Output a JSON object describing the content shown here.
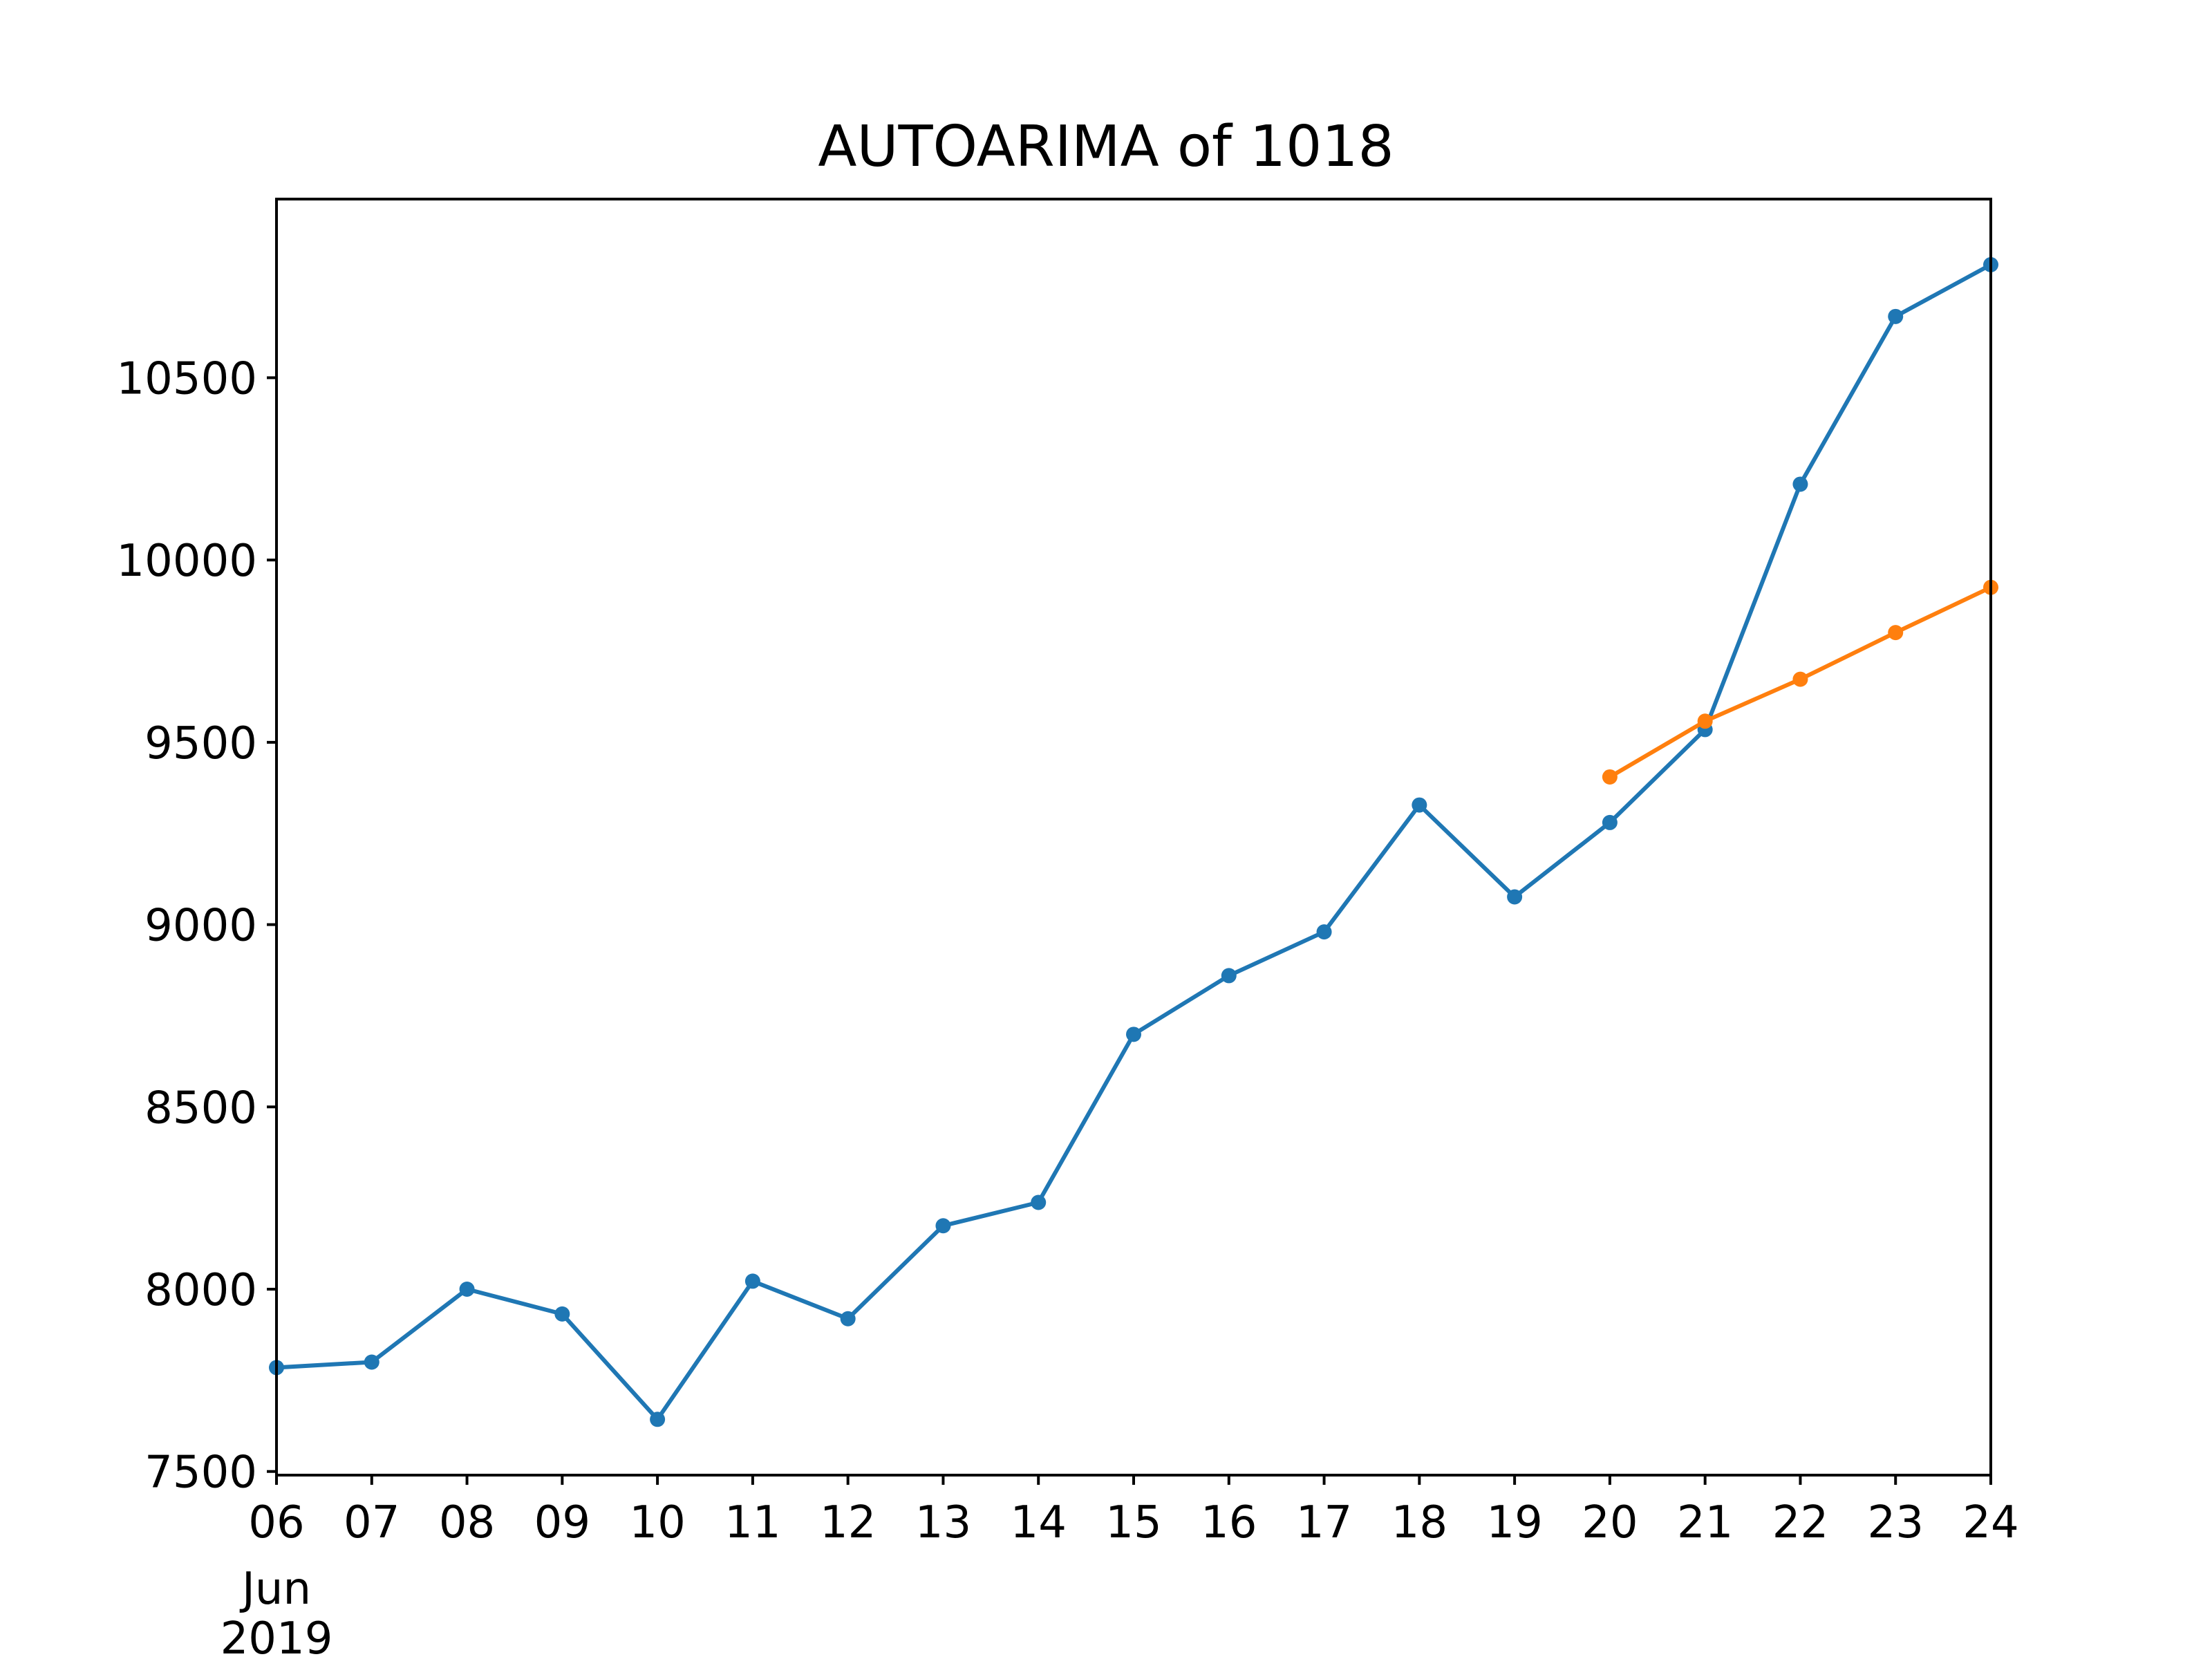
{
  "chart_data": {
    "type": "line",
    "title": "AUTOARIMA of 1018",
    "xlabel": "",
    "ylabel": "",
    "x_axis_label_lines": [
      "Jun",
      "2019"
    ],
    "x": [
      "2019-06-06",
      "2019-06-07",
      "2019-06-08",
      "2019-06-09",
      "2019-06-10",
      "2019-06-11",
      "2019-06-12",
      "2019-06-13",
      "2019-06-14",
      "2019-06-15",
      "2019-06-16",
      "2019-06-17",
      "2019-06-18",
      "2019-06-19",
      "2019-06-20",
      "2019-06-21",
      "2019-06-22",
      "2019-06-23",
      "2019-06-24"
    ],
    "x_tick_labels": [
      "06",
      "07",
      "08",
      "09",
      "10",
      "11",
      "12",
      "13",
      "14",
      "15",
      "16",
      "17",
      "18",
      "19",
      "20",
      "21",
      "22",
      "23",
      "24"
    ],
    "xlim": [
      "2019-06-06",
      "2019-06-24"
    ],
    "ylim": [
      7490,
      10990
    ],
    "y_ticks": [
      7500,
      8000,
      8500,
      9000,
      9500,
      10000,
      10500
    ],
    "grid": false,
    "series": [
      {
        "color": "#1f77b4",
        "x": [
          "2019-06-06",
          "2019-06-07",
          "2019-06-08",
          "2019-06-09",
          "2019-06-10",
          "2019-06-11",
          "2019-06-12",
          "2019-06-13",
          "2019-06-14",
          "2019-06-15",
          "2019-06-16",
          "2019-06-17",
          "2019-06-18",
          "2019-06-19",
          "2019-06-20",
          "2019-06-21",
          "2019-06-22",
          "2019-06-23",
          "2019-06-24"
        ],
        "values": [
          7785,
          7800,
          8000,
          7932,
          7643,
          8022,
          7919,
          8174,
          8238,
          8699,
          8860,
          8980,
          9328,
          9076,
          9280,
          9535,
          10208,
          10668,
          10810
        ]
      },
      {
        "color": "#ff7f0e",
        "x": [
          "2019-06-20",
          "2019-06-21",
          "2019-06-22",
          "2019-06-23",
          "2019-06-24"
        ],
        "values": [
          9405,
          9558,
          9673,
          9801,
          9925
        ]
      }
    ]
  }
}
